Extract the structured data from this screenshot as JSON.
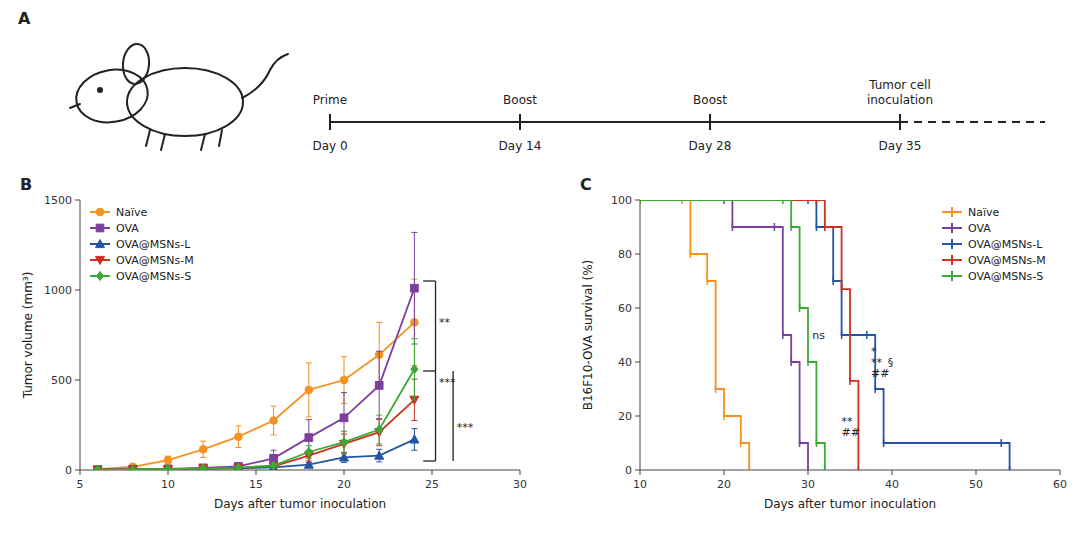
{
  "chart_data": [
    {
      "type": "timeline",
      "title": "A",
      "categories": [
        "Day 0",
        "Day 14",
        "Day 28",
        "Day 35"
      ],
      "events": [
        "Prime",
        "Boost",
        "Boost",
        "Tumor cell\ninoculation"
      ]
    },
    {
      "type": "line",
      "title": "B",
      "xlabel": "Days after tumor inoculation",
      "ylabel": "Tumor volume (mm³)",
      "xlim": [
        5,
        30
      ],
      "ylim": [
        0,
        1500
      ],
      "xticks": [
        5,
        10,
        15,
        20,
        25,
        30
      ],
      "yticks": [
        0,
        500,
        1000,
        1500
      ],
      "grid": false,
      "legend": "upper left",
      "x": [
        6,
        8,
        10,
        12,
        14,
        16,
        18,
        20,
        22,
        24
      ],
      "series": [
        {
          "name": "Naïve",
          "color": "#F5921E",
          "marker": "circle",
          "values": [
            5,
            18,
            55,
            115,
            185,
            275,
            445,
            500,
            640,
            820
          ],
          "errors": [
            2,
            8,
            22,
            45,
            60,
            80,
            150,
            130,
            180,
            240
          ]
        },
        {
          "name": "OVA",
          "color": "#7B3F9E",
          "marker": "square",
          "values": [
            2,
            4,
            6,
            12,
            20,
            65,
            180,
            290,
            470,
            1010
          ],
          "errors": [
            1,
            2,
            2,
            5,
            10,
            45,
            100,
            140,
            190,
            310
          ]
        },
        {
          "name": "OVA@MSNs-L",
          "color": "#2255A4",
          "marker": "triangle-up",
          "values": [
            2,
            3,
            5,
            7,
            10,
            15,
            30,
            70,
            80,
            170
          ],
          "errors": [
            1,
            1,
            2,
            2,
            4,
            6,
            12,
            28,
            35,
            60
          ]
        },
        {
          "name": "OVA@MSNs-M",
          "color": "#D03020",
          "marker": "triangle-down",
          "values": [
            2,
            3,
            5,
            8,
            12,
            20,
            80,
            145,
            210,
            390
          ],
          "errors": [
            1,
            1,
            2,
            3,
            5,
            8,
            30,
            55,
            75,
            115
          ]
        },
        {
          "name": "OVA@MSNs-S",
          "color": "#3AAA35",
          "marker": "diamond",
          "values": [
            2,
            3,
            5,
            8,
            13,
            25,
            100,
            155,
            225,
            560
          ],
          "errors": [
            1,
            1,
            2,
            3,
            5,
            10,
            35,
            60,
            80,
            170
          ]
        }
      ],
      "brackets": [
        {
          "x": [
            25.2,
            25.2
          ],
          "y": [
            550,
            1050
          ]
        },
        {
          "x": [
            25.2,
            25.2
          ],
          "y": [
            50,
            550
          ]
        },
        {
          "x": [
            24.5,
            25.2
          ],
          "y": [
            1050,
            1050
          ]
        },
        {
          "x": [
            24.5,
            25.2
          ],
          "y": [
            550,
            550
          ]
        },
        {
          "x": [
            24.5,
            25.2
          ],
          "y": [
            50,
            50
          ]
        },
        {
          "x": [
            26.2,
            26.2
          ],
          "y": [
            50,
            550
          ]
        }
      ],
      "annotations": [
        {
          "text": "**",
          "x": 25.4,
          "y": 820
        },
        {
          "text": "***",
          "x": 25.4,
          "y": 490
        },
        {
          "text": "***",
          "x": 26.4,
          "y": 240
        }
      ]
    },
    {
      "type": "step",
      "title": "C",
      "xlabel": "Days after tumor inoculation",
      "ylabel": "B16F10-OVA survival (%)",
      "xlim": [
        10,
        60
      ],
      "ylim": [
        0,
        100
      ],
      "xticks": [
        10,
        20,
        30,
        40,
        50,
        60
      ],
      "yticks": [
        0,
        20,
        40,
        60,
        80,
        100
      ],
      "grid": false,
      "legend": "upper right",
      "series": [
        {
          "name": "Naïve",
          "color": "#F5921E",
          "x": [
            10,
            15,
            16,
            18,
            19,
            20,
            22,
            23
          ],
          "values": [
            100,
            100,
            80,
            70,
            30,
            20,
            10,
            0
          ]
        },
        {
          "name": "OVA",
          "color": "#7B3F9E",
          "x": [
            10,
            20,
            21,
            26,
            27,
            28,
            29,
            30
          ],
          "values": [
            100,
            100,
            90,
            90,
            50,
            40,
            10,
            0
          ]
        },
        {
          "name": "OVA@MSNs-L",
          "color": "#2255A4",
          "x": [
            10,
            30,
            31,
            33,
            34,
            37,
            38,
            39,
            53,
            54
          ],
          "values": [
            100,
            100,
            90,
            70,
            50,
            50,
            30,
            10,
            10,
            0
          ]
        },
        {
          "name": "OVA@MSNs-M",
          "color": "#D03020",
          "x": [
            10,
            31,
            32,
            34,
            35,
            36
          ],
          "values": [
            100,
            100,
            90,
            67,
            33,
            0
          ]
        },
        {
          "name": "OVA@MSNs-S",
          "color": "#3AAA35",
          "x": [
            10,
            27,
            28,
            29,
            30,
            31,
            32
          ],
          "values": [
            100,
            100,
            90,
            60,
            40,
            10,
            0
          ]
        }
      ],
      "annotations": [
        {
          "text": "ns",
          "x": 30.5,
          "y": 50
        },
        {
          "text": "*",
          "x": 37.5,
          "y": 44
        },
        {
          "text": "**",
          "x": 37.5,
          "y": 40
        },
        {
          "text": "##",
          "x": 37.5,
          "y": 36
        },
        {
          "text": "§",
          "x": 39.5,
          "y": 40
        },
        {
          "text": "**",
          "x": 34.0,
          "y": 18
        },
        {
          "text": "##",
          "x": 34.0,
          "y": 14
        }
      ]
    }
  ]
}
